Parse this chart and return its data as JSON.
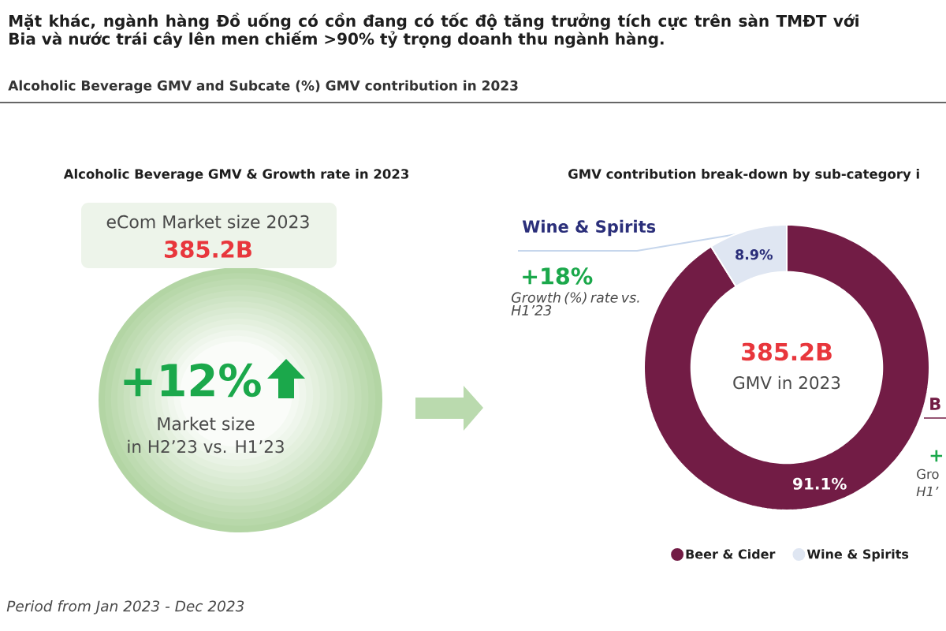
{
  "chart_data": [
    {
      "type": "other",
      "title": "Mặt khác, ngành hàng Đồ uống có cồn đang có tốc độ tăng trưởng tích cực trên sàn TMĐT với Bia và nước trái cây lên men chiếm >90% tỷ trọng doanh thu ngành hàng.",
      "subtitle": "Alcoholic Beverage GMV and Subcate (%) GMV contribution in 2023",
      "annotations": [
        "Alcoholic Beverage GMV & Growth rate in 2023",
        "eCom Market size 2023",
        "385.2B",
        "+12%",
        "Market size",
        "in H2’23 vs. H1’23",
        "Period from Jan 2023 - Dec 2023"
      ]
    },
    {
      "type": "donut",
      "title": "GMV contribution break-down by sub-category i",
      "categories": [
        "Beer & Cider",
        "Wine & Spirits"
      ],
      "values": [
        91.1,
        8.9
      ],
      "colors": [
        "#721c45",
        "#dfe6f2"
      ],
      "value_labels": [
        "91.1%",
        "8.9%"
      ],
      "legend": "bottom",
      "annotations": [
        "385.2B",
        "GMV in 2023",
        "Wine & Spirits",
        "+18%",
        "Growth (%) rate vs. H1’23",
        "B",
        "+",
        "Gro",
        "H1’"
      ]
    }
  ]
}
